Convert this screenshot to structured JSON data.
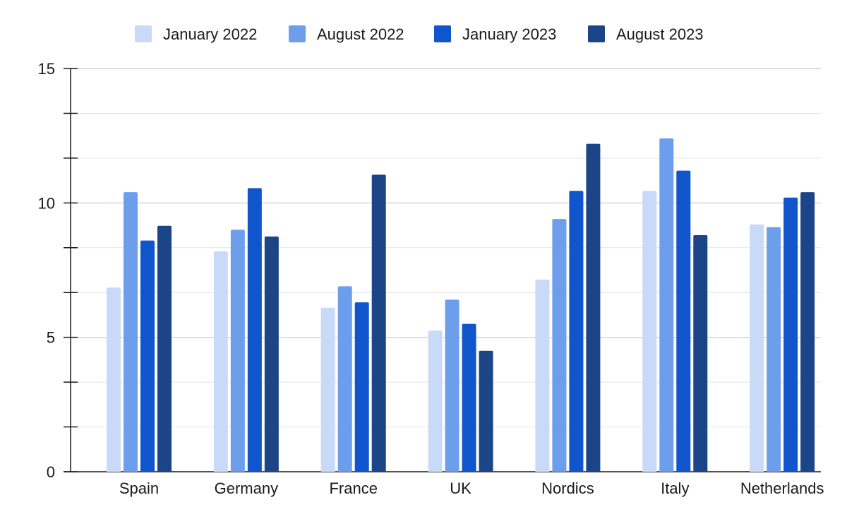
{
  "chart_data": {
    "type": "bar",
    "title": "",
    "xlabel": "",
    "ylabel": "",
    "categories": [
      "Spain",
      "Germany",
      "France",
      "UK",
      "Nordics",
      "Italy",
      "Netherlands"
    ],
    "series": [
      {
        "name": "January 2022",
        "color": "#c9daf8",
        "values": [
          6.85,
          8.2,
          6.1,
          5.25,
          7.15,
          10.45,
          9.2
        ]
      },
      {
        "name": "August 2022",
        "color": "#6d9eeb",
        "values": [
          10.4,
          9.0,
          6.9,
          6.4,
          9.4,
          12.4,
          9.1
        ]
      },
      {
        "name": "January 2023",
        "color": "#1155cc",
        "values": [
          8.6,
          10.55,
          6.3,
          5.5,
          10.45,
          11.2,
          10.2
        ]
      },
      {
        "name": "August 2023",
        "color": "#1c4587",
        "values": [
          9.15,
          8.75,
          11.05,
          4.5,
          12.2,
          8.8,
          10.4
        ]
      }
    ],
    "ylim": [
      0,
      15
    ],
    "yticks": [
      "0",
      "5",
      "10",
      "15"
    ],
    "grid": true,
    "legend_position": "top"
  }
}
